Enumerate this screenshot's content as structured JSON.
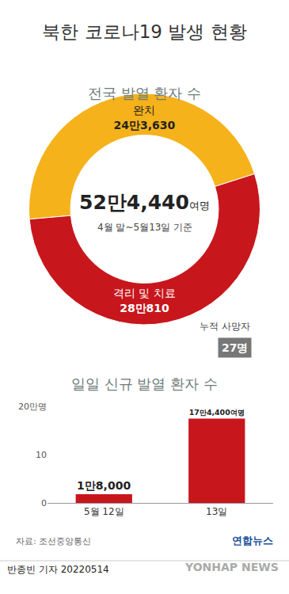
{
  "title": "북한 코로나19 발생 현황",
  "chart_data": [
    {
      "type": "pie",
      "title": "전국 발열 환자 수",
      "categories": [
        "완치",
        "격리 및 치료"
      ],
      "values": [
        243630,
        280810
      ],
      "value_labels": [
        "24만3,630",
        "28만810"
      ],
      "colors": [
        "#f5b21b",
        "#c8161d"
      ],
      "data_labels": true,
      "center_label": "52만4,440",
      "center_unit": "여명",
      "center_note": "4월 말~5월13일 기준"
    },
    {
      "type": "bar",
      "title": "일일 신규 발열 환자 수",
      "categories": [
        "5월 12일",
        "13일"
      ],
      "values": [
        1.8,
        17.44
      ],
      "value_labels": [
        "1만8,000",
        "17만4,400여명"
      ],
      "color": "#c8161d",
      "ylim": [
        0,
        20
      ],
      "yticks": [
        0,
        10,
        {
          "value": 20,
          "label": "20만명"
        }
      ],
      "grid": false,
      "data_labels": true
    }
  ],
  "deaths": {
    "label": "누적 사망자",
    "value_label": "27명"
  },
  "source": "자료: 조선중앙통신",
  "agency": "연합뉴스",
  "credit": "반종빈 기자 20220514",
  "watermark": "YONHAP NEWS"
}
